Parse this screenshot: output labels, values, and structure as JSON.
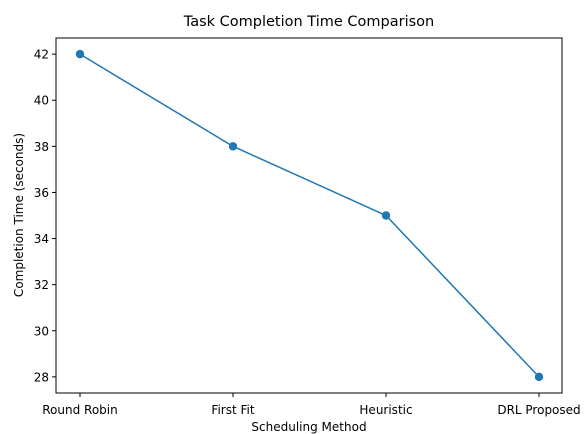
{
  "chart_data": {
    "type": "line",
    "title": "Task Completion Time Comparison",
    "xlabel": "Scheduling Method",
    "ylabel": "Completion Time (seconds)",
    "categories": [
      "Round Robin",
      "First Fit",
      "Heuristic",
      "DRL Proposed"
    ],
    "series": [
      {
        "values": [
          42,
          38,
          35,
          28
        ],
        "color": "#1f77b4",
        "marker": "circle"
      }
    ],
    "ylim": [
      27.3,
      42.7
    ],
    "yticks": [
      28,
      30,
      32,
      34,
      36,
      38,
      40,
      42
    ],
    "grid": false,
    "legend": "none"
  }
}
